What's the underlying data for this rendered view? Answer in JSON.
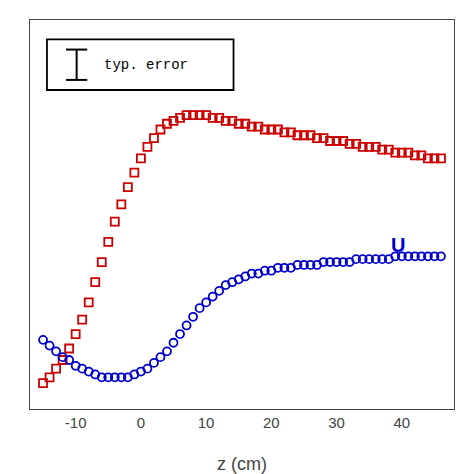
{
  "chart_data": {
    "type": "scatter",
    "xlabel": "z (cm)",
    "x": [
      -15,
      -14,
      -13,
      -12,
      -11,
      -10,
      -9,
      -8,
      -7,
      -6,
      -5,
      -4,
      -3,
      -2,
      -1,
      0,
      1,
      2,
      3,
      4,
      5,
      6,
      7,
      8,
      9,
      10,
      11,
      12,
      13,
      14,
      15,
      16,
      17,
      18,
      19,
      20,
      21,
      22,
      23,
      24,
      25,
      26,
      27,
      28,
      29,
      30,
      31,
      32,
      33,
      34,
      35,
      36,
      37,
      38,
      39,
      40,
      41,
      42,
      43,
      44,
      45,
      46
    ],
    "series": [
      {
        "color": "#cc0000",
        "marker": "square",
        "values": [
          0.09,
          0.11,
          0.14,
          0.17,
          0.21,
          0.26,
          0.31,
          0.37,
          0.44,
          0.51,
          0.58,
          0.65,
          0.71,
          0.77,
          0.82,
          0.87,
          0.91,
          0.94,
          0.97,
          0.99,
          1.0,
          1.01,
          1.02,
          1.02,
          1.02,
          1.02,
          1.01,
          1.01,
          1.0,
          1.0,
          0.99,
          0.99,
          0.98,
          0.98,
          0.97,
          0.97,
          0.97,
          0.96,
          0.96,
          0.95,
          0.95,
          0.95,
          0.94,
          0.94,
          0.93,
          0.93,
          0.93,
          0.92,
          0.92,
          0.91,
          0.91,
          0.91,
          0.9,
          0.9,
          0.89,
          0.89,
          0.89,
          0.88,
          0.88,
          0.87,
          0.87,
          0.87
        ]
      },
      {
        "color": "#0000cc",
        "marker": "circle",
        "values": [
          0.24,
          0.22,
          0.2,
          0.18,
          0.17,
          0.15,
          0.14,
          0.13,
          0.12,
          0.11,
          0.11,
          0.11,
          0.11,
          0.11,
          0.12,
          0.13,
          0.14,
          0.16,
          0.18,
          0.2,
          0.23,
          0.26,
          0.29,
          0.32,
          0.35,
          0.37,
          0.39,
          0.41,
          0.43,
          0.44,
          0.45,
          0.46,
          0.47,
          0.47,
          0.48,
          0.48,
          0.49,
          0.49,
          0.49,
          0.5,
          0.5,
          0.5,
          0.5,
          0.51,
          0.51,
          0.51,
          0.51,
          0.51,
          0.52,
          0.52,
          0.52,
          0.52,
          0.52,
          0.52,
          0.53,
          0.53,
          0.53,
          0.53,
          0.53,
          0.53,
          0.53,
          0.53
        ]
      }
    ],
    "xlim": [
      -17,
      48
    ],
    "ylim": [
      0.0,
      1.35
    ],
    "xticks": [
      -10,
      0,
      10,
      20,
      30,
      40
    ],
    "tick_labels": "x",
    "grid": false,
    "annotations": [
      {
        "text": "U",
        "x": 38,
        "y": 0.57,
        "color": "#0000cc"
      },
      {
        "text": "typ. error"
      }
    ]
  }
}
